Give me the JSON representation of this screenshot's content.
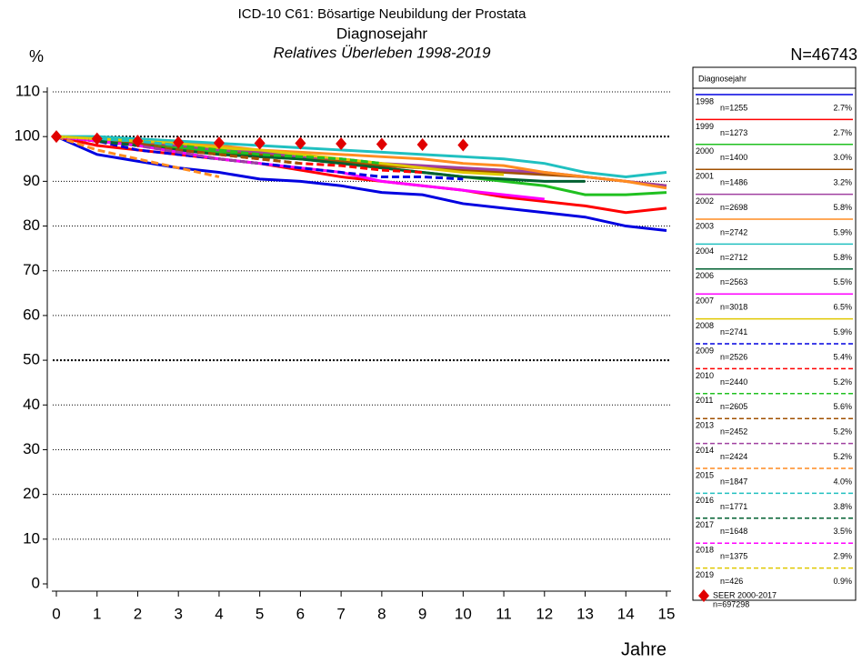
{
  "chart_data": {
    "type": "line",
    "title": "ICD-10 C61: Bösartige Neubildung der Prostata",
    "title2": "Diagnosejahr",
    "subtitle": "Relatives Überleben 1998-2019",
    "y_label": "%",
    "total": "N=46743",
    "x_label": "Jahre",
    "legend_title": "Diagnosejahr",
    "x": [
      0,
      1,
      2,
      3,
      4,
      5,
      6,
      7,
      8,
      9,
      10,
      11,
      12,
      13,
      14,
      15
    ],
    "xlim": [
      0,
      15
    ],
    "xticks": [
      0,
      1,
      2,
      3,
      4,
      5,
      6,
      7,
      8,
      9,
      10,
      11,
      12,
      13,
      14,
      15
    ],
    "ylim": [
      0,
      110
    ],
    "yticks": [
      0,
      10,
      20,
      30,
      40,
      50,
      60,
      70,
      80,
      90,
      100,
      110
    ],
    "grid": true,
    "bold_grid": [
      50,
      100
    ],
    "series": [
      {
        "name": "1998",
        "n": "n=1255",
        "share": "2.7%",
        "color": "#0000e0",
        "dash": false,
        "values": [
          100,
          96,
          94.5,
          93,
          92,
          90.5,
          90,
          89,
          87.5,
          87,
          85,
          84,
          83,
          82,
          80,
          79
        ]
      },
      {
        "name": "1999",
        "n": "n=1273",
        "share": "2.7%",
        "color": "#ff0000",
        "dash": false,
        "values": [
          100,
          98,
          97,
          96,
          95,
          94,
          92.5,
          91,
          90,
          89,
          88,
          86.5,
          85.5,
          84.5,
          83,
          84
        ]
      },
      {
        "name": "2000",
        "n": "n=1400",
        "share": "3.0%",
        "color": "#20c020",
        "dash": false,
        "values": [
          100,
          99,
          98,
          97.5,
          96.5,
          95.5,
          95,
          94,
          93,
          92,
          91,
          90,
          89,
          87,
          87,
          87.5
        ]
      },
      {
        "name": "2001",
        "n": "n=1486",
        "share": "3.2%",
        "color": "#a05000",
        "dash": false,
        "values": [
          100,
          99.5,
          98.5,
          98,
          97,
          96,
          95,
          94.5,
          93.5,
          93,
          92.5,
          92,
          91.5,
          91,
          90,
          89
        ]
      },
      {
        "name": "2002",
        "n": "n=2698",
        "share": "5.8%",
        "color": "#a040a0",
        "dash": false,
        "values": [
          100,
          99.5,
          99,
          98,
          97,
          96.5,
          95.5,
          95,
          94,
          93.5,
          93,
          92.5,
          92,
          91,
          90,
          89
        ]
      },
      {
        "name": "2003",
        "n": "n=2742",
        "share": "5.9%",
        "color": "#ff8c20",
        "dash": false,
        "values": [
          100,
          99.5,
          99,
          98.5,
          98,
          97,
          96.5,
          96,
          95.5,
          95,
          94,
          93.5,
          92,
          91,
          90,
          88.5
        ]
      },
      {
        "name": "2004",
        "n": "n=2712",
        "share": "5.8%",
        "color": "#20c0c0",
        "dash": false,
        "values": [
          100,
          100,
          99.5,
          99,
          98.5,
          98,
          97.5,
          97,
          96.5,
          96,
          95.5,
          95,
          94,
          92,
          91,
          92
        ]
      },
      {
        "name": "2006",
        "n": "n=2563",
        "share": "5.5%",
        "color": "#006030",
        "dash": false,
        "values": [
          100,
          99,
          98,
          97,
          96,
          95.5,
          95,
          94,
          93,
          92,
          91,
          90.5,
          90,
          90,
          null,
          null
        ]
      },
      {
        "name": "2007",
        "n": "n=3018",
        "share": "6.5%",
        "color": "#ff00ff",
        "dash": false,
        "values": [
          100,
          99,
          98,
          96.5,
          95,
          94,
          93,
          92,
          90,
          89,
          88,
          87,
          86,
          null,
          null,
          null
        ]
      },
      {
        "name": "2008",
        "n": "n=2741",
        "share": "5.9%",
        "color": "#e0c800",
        "dash": false,
        "values": [
          100,
          99.5,
          99,
          98.5,
          97.5,
          97,
          96,
          95,
          94,
          93,
          92,
          91.5,
          null,
          null,
          null,
          null
        ]
      },
      {
        "name": "2009",
        "n": "n=2526",
        "share": "5.4%",
        "color": "#0000e0",
        "dash": true,
        "values": [
          100,
          99,
          97,
          96,
          95,
          94,
          93,
          92,
          91,
          91,
          90.5,
          null,
          null,
          null,
          null,
          null
        ]
      },
      {
        "name": "2010",
        "n": "n=2440",
        "share": "5.2%",
        "color": "#ff0000",
        "dash": true,
        "values": [
          100,
          99,
          98,
          97,
          96,
          95,
          94,
          93.5,
          92.5,
          92,
          null,
          null,
          null,
          null,
          null,
          null
        ]
      },
      {
        "name": "2011",
        "n": "n=2605",
        "share": "5.6%",
        "color": "#20c020",
        "dash": true,
        "values": [
          100,
          99.5,
          99,
          98,
          97,
          96,
          95.5,
          95,
          94,
          null,
          null,
          null,
          null,
          null,
          null,
          null
        ]
      },
      {
        "name": "2013",
        "n": "n=2452",
        "share": "5.2%",
        "color": "#a05000",
        "dash": true,
        "values": [
          100,
          99,
          98,
          97,
          96,
          95,
          94,
          null,
          null,
          null,
          null,
          null,
          null,
          null,
          null,
          null
        ]
      },
      {
        "name": "2014",
        "n": "n=2424",
        "share": "5.2%",
        "color": "#a040a0",
        "dash": true,
        "values": [
          100,
          99,
          98,
          96.5,
          95,
          94,
          null,
          null,
          null,
          null,
          null,
          null,
          null,
          null,
          null,
          null
        ]
      },
      {
        "name": "2015",
        "n": "n=1847",
        "share": "4.0%",
        "color": "#ff8c20",
        "dash": true,
        "values": [
          100,
          97,
          95,
          93,
          91,
          null,
          null,
          null,
          null,
          null,
          null,
          null,
          null,
          null,
          null,
          null
        ]
      },
      {
        "name": "2016",
        "n": "n=1771",
        "share": "3.8%",
        "color": "#20c0c0",
        "dash": true,
        "values": [
          100,
          99.5,
          99,
          98,
          null,
          null,
          null,
          null,
          null,
          null,
          null,
          null,
          null,
          null,
          null,
          null
        ]
      },
      {
        "name": "2017",
        "n": "n=1648",
        "share": "3.5%",
        "color": "#006030",
        "dash": true,
        "values": [
          100,
          99,
          98,
          null,
          null,
          null,
          null,
          null,
          null,
          null,
          null,
          null,
          null,
          null,
          null,
          null
        ]
      },
      {
        "name": "2018",
        "n": "n=1375",
        "share": "2.9%",
        "color": "#ff00ff",
        "dash": true,
        "values": [
          100,
          99,
          null,
          null,
          null,
          null,
          null,
          null,
          null,
          null,
          null,
          null,
          null,
          null,
          null,
          null
        ]
      },
      {
        "name": "2019",
        "n": "n=426",
        "share": "0.9%",
        "color": "#e0c800",
        "dash": true,
        "values": [
          100,
          99.5,
          null,
          null,
          null,
          null,
          null,
          null,
          null,
          null,
          null,
          null,
          null,
          null,
          null,
          null
        ]
      }
    ],
    "reference": {
      "name": "SEER 2000-2017",
      "n": "n=697298",
      "color": "#e00000",
      "x": [
        0,
        1,
        2,
        3,
        4,
        5,
        6,
        7,
        8,
        9,
        10
      ],
      "values": [
        100,
        99.5,
        99,
        98.7,
        98.6,
        98.5,
        98.5,
        98.4,
        98.3,
        98.2,
        98.1
      ]
    }
  }
}
